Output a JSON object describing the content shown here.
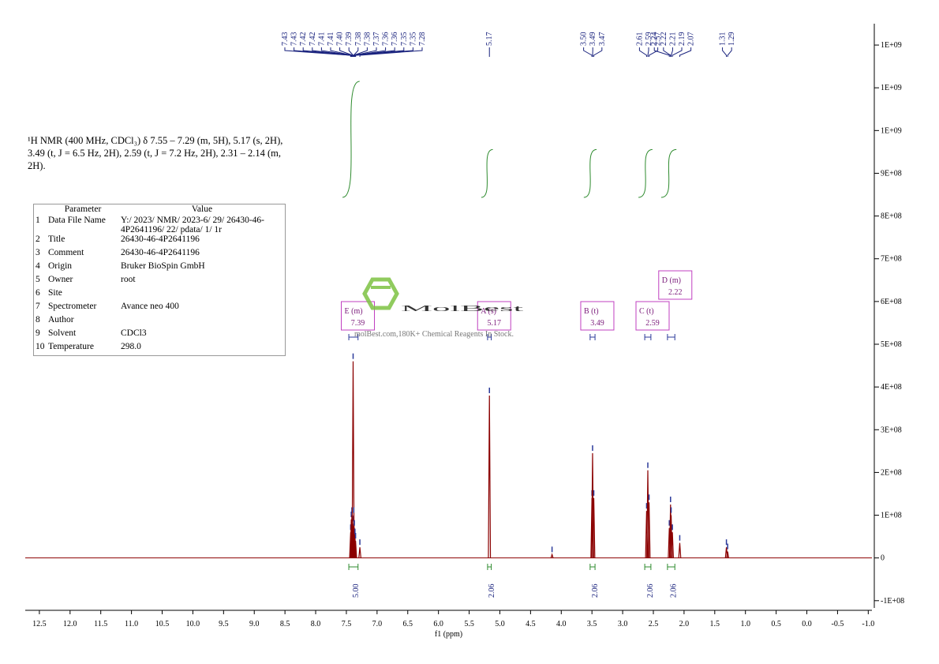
{
  "chart_data": {
    "type": "nmr",
    "description": "¹H NMR (400 MHz, CDCl₃) δ 7.55 – 7.29 (m, 5H), 5.17 (s, 2H), 3.49 (t, J = 6.5 Hz, 2H), 2.59 (t, J = 7.2 Hz, 2H), 2.31 – 2.14 (m, 2H).",
    "x_label": "f1 (ppm)",
    "xlim": [
      12.73,
      -1.06
    ],
    "xticks": [
      12.5,
      {
        "value": 12,
        "label": "12.0"
      },
      11.5,
      {
        "value": 11,
        "label": "11.0"
      },
      10.5,
      {
        "value": 10,
        "label": "10.0"
      },
      9.5,
      {
        "value": 9,
        "label": "9.0"
      },
      8.5,
      {
        "value": 8,
        "label": "8.0"
      },
      7.5,
      {
        "value": 7,
        "label": "7.0"
      },
      6.5,
      {
        "value": 6,
        "label": "6.0"
      },
      5.5,
      {
        "value": 5,
        "label": "5.0"
      },
      4.5,
      {
        "value": 4,
        "label": "4.0"
      },
      3.5,
      {
        "value": 3,
        "label": "3.0"
      },
      2.5,
      {
        "value": 2,
        "label": "2.0"
      },
      1.5,
      {
        "value": 1,
        "label": "1.0"
      },
      0.5,
      {
        "value": 0,
        "label": "0.0"
      },
      -0.5,
      {
        "value": -1,
        "label": "-1.0"
      }
    ],
    "ylim": [
      -117000000,
      1250000000
    ],
    "yticks": [
      {
        "value": 1200000000,
        "label": "1E+09"
      },
      {
        "value": 1100000000,
        "label": "1E+09"
      },
      {
        "value": 1000000000,
        "label": "1E+09"
      },
      {
        "value": 900000000,
        "label": "9E+08"
      },
      {
        "value": 800000000,
        "label": "8E+08"
      },
      {
        "value": 700000000,
        "label": "7E+08"
      },
      {
        "value": 600000000,
        "label": "6E+08"
      },
      {
        "value": 500000000,
        "label": "5E+08"
      },
      {
        "value": 400000000,
        "label": "4E+08"
      },
      {
        "value": 300000000,
        "label": "3E+08"
      },
      {
        "value": 200000000,
        "label": "2E+08"
      },
      {
        "value": 100000000,
        "label": "1E+08"
      },
      0,
      {
        "value": -100000000,
        "label": "-1E+08"
      }
    ],
    "color": "#8b0000",
    "spectrum": {
      "x": [
        7.43,
        7.42,
        7.41,
        7.4,
        7.39,
        7.38,
        7.37,
        7.36,
        7.35,
        7.28,
        5.17,
        4.15,
        3.5,
        3.49,
        3.47,
        2.61,
        2.59,
        2.57,
        2.24,
        2.22,
        2.21,
        2.19,
        2.07,
        1.31,
        1.29
      ],
      "values": [
        60000000,
        90000000,
        100000000,
        80000000,
        460000000,
        100000000,
        70000000,
        50000000,
        40000000,
        25000000,
        380000000,
        8000000,
        140000000,
        245000000,
        140000000,
        110000000,
        205000000,
        130000000,
        70000000,
        125000000,
        100000000,
        60000000,
        35000000,
        25000000,
        15000000
      ]
    },
    "peak_picks": {
      "values": [
        7.43,
        7.43,
        7.42,
        7.42,
        7.41,
        7.41,
        7.4,
        7.39,
        7.38,
        7.38,
        7.37,
        7.36,
        7.36,
        7.35,
        7.35,
        7.28,
        5.17,
        3.5,
        3.49,
        3.47,
        2.61,
        2.59,
        2.57,
        2.24,
        2.22,
        2.21,
        2.19,
        2.07,
        1.31,
        1.29
      ],
      "value_labels": [
        "7.43",
        "7.43",
        "7.42",
        "7.42",
        "7.41",
        "7.41",
        "7.40",
        "7.39",
        "7.38",
        "7.38",
        "7.37",
        "7.36",
        "7.36",
        "7.35",
        "7.35",
        "7.28",
        "5.17",
        "3.50",
        "3.49",
        "3.47",
        "2.61",
        "2.59",
        "2.57",
        "2.24",
        "2.22",
        "2.21",
        "2.19",
        "2.07",
        "1.31",
        "1.29"
      ]
    },
    "integrals": {
      "ranges": [
        [
          7.46,
          7.31
        ],
        [
          5.2,
          5.14
        ],
        [
          3.53,
          3.45
        ],
        [
          2.64,
          2.54
        ],
        [
          2.27,
          2.15
        ]
      ],
      "values": [
        5,
        2.06,
        2.06,
        2.06,
        2.06
      ],
      "value_labels": [
        "5.00",
        "2.06",
        "2.06",
        "2.06",
        "2.06"
      ]
    },
    "multiplets": {
      "names": [
        "E (m)",
        "A (s)",
        "B (t)",
        "C (t)",
        "D (m)"
      ],
      "values": [
        7.39,
        5.17,
        3.49,
        2.59,
        2.22
      ]
    },
    "parameters": {
      "header": [
        "Parameter",
        "Value"
      ],
      "rows": [
        [
          "1",
          "Data File Name",
          "Y:/ 2023/ NMR/ 2023-6/ 29/ 26430-46-4P2641196/ 22/ pdata/ 1/ 1r"
        ],
        [
          "2",
          "Title",
          "26430-46-4P2641196"
        ],
        [
          "3",
          "Comment",
          "26430-46-4P2641196"
        ],
        [
          "4",
          "Origin",
          "Bruker BioSpin GmbH"
        ],
        [
          "5",
          "Owner",
          "root"
        ],
        [
          "6",
          "Site",
          ""
        ],
        [
          "7",
          "Spectrometer",
          "Avance neo 400"
        ],
        [
          "8",
          "Author",
          ""
        ],
        [
          "9",
          "Solvent",
          "CDCl3"
        ],
        [
          "10",
          "Temperature",
          "298.0"
        ]
      ]
    },
    "watermark": {
      "brand": "MolBest",
      "tagline": "molBest.com,180K+ Chemical Reagents In Stock."
    }
  }
}
